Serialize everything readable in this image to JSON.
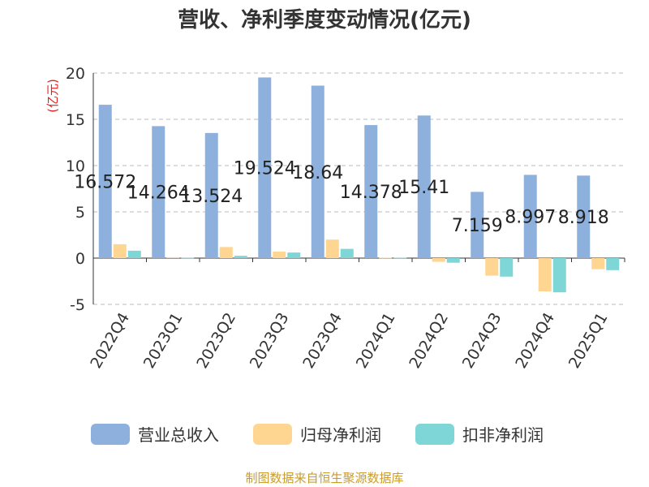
{
  "title": "营收、净利季度变动情况(亿元)",
  "source": "制图数据来自恒生聚源数据库",
  "chart_data": {
    "type": "bar",
    "title": "营收、净利季度变动情况(亿元)",
    "ylabel": "(亿元)",
    "ylim": [
      -5,
      20
    ],
    "yticks": [
      20,
      15,
      10,
      5,
      0,
      -5
    ],
    "grid": true,
    "legend_position": "bottom",
    "categories": [
      "2022Q4",
      "2023Q1",
      "2023Q2",
      "2023Q3",
      "2023Q4",
      "2024Q1",
      "2024Q2",
      "2024Q3",
      "2024Q4",
      "2025Q1"
    ],
    "series": [
      {
        "name": "营业总收入",
        "color": "#8eb0dc",
        "values": [
          16.572,
          14.264,
          13.524,
          19.524,
          18.64,
          14.378,
          15.41,
          7.159,
          8.997,
          8.918
        ]
      },
      {
        "name": "归母净利润",
        "color": "#ffd592",
        "values": [
          1.5,
          0.1,
          1.2,
          0.7,
          2.0,
          0.05,
          -0.4,
          -1.9,
          -3.6,
          -1.2
        ]
      },
      {
        "name": "扣非净利润",
        "color": "#7fd6d6",
        "values": [
          0.8,
          0.05,
          0.25,
          0.6,
          1.0,
          0.05,
          -0.5,
          -2.0,
          -3.7,
          -1.3
        ]
      }
    ],
    "data_labels": [
      "16.572",
      "14.264",
      "13.524",
      "19.524",
      "18.64",
      "14.378",
      "15.41",
      "7.159",
      "8.997",
      "8.918"
    ]
  }
}
